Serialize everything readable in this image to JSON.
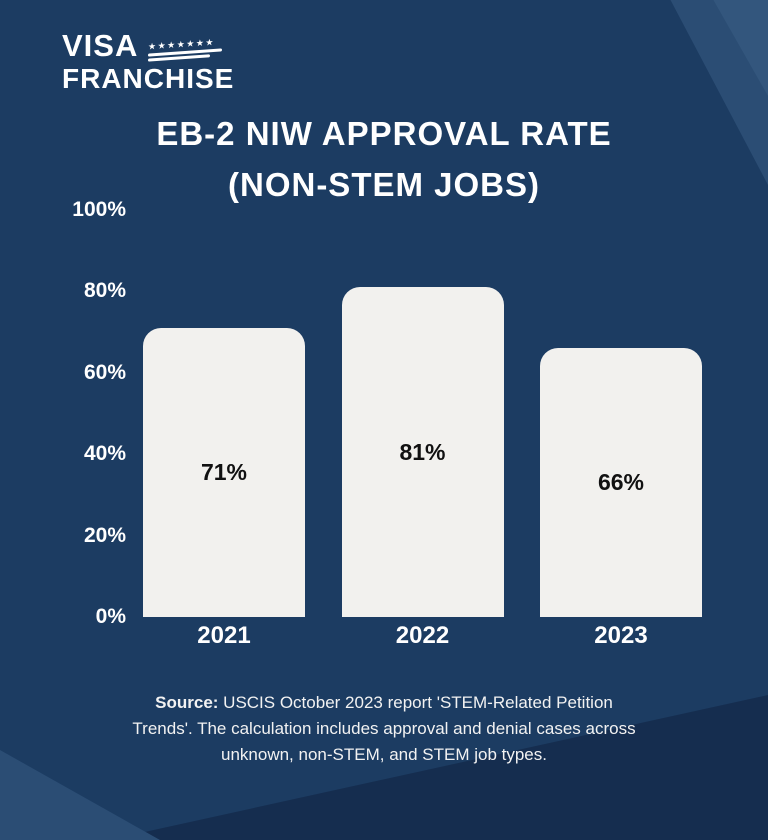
{
  "logo": {
    "line1": "VISA",
    "line2": "FRANCHISE",
    "flag_stars": "★★★★★★★"
  },
  "title": {
    "line1": "EB-2 NIW APPROVAL RATE",
    "line2": "(NON-STEM JOBS)"
  },
  "chart_data": {
    "type": "bar",
    "categories": [
      "2021",
      "2022",
      "2023"
    ],
    "values": [
      71,
      81,
      66
    ],
    "value_labels": [
      "71%",
      "81%",
      "66%"
    ],
    "yticks": [
      "100%",
      "80%",
      "60%",
      "40%",
      "20%",
      "0%"
    ],
    "ylim": [
      0,
      100
    ],
    "title": "EB-2 NIW APPROVAL RATE (NON-STEM JOBS)",
    "xlabel": "",
    "ylabel": "",
    "grid": false,
    "legend": false,
    "bar_color": "#f2f1ee",
    "value_label_color": "#111111",
    "axis_text_color": "#ffffff"
  },
  "footer": {
    "bold_prefix": "Source:",
    "line1_rest": " USCIS October 2023 report 'STEM-Related Petition",
    "line2": "Trends'. The calculation includes approval and denial cases across",
    "line3": "unknown, non-STEM, and STEM job types."
  },
  "colors": {
    "background": "#1c3c62",
    "accent_light": "#2b4d74",
    "accent_dark": "#152d4f",
    "bar": "#f2f1ee",
    "text": "#ffffff"
  }
}
